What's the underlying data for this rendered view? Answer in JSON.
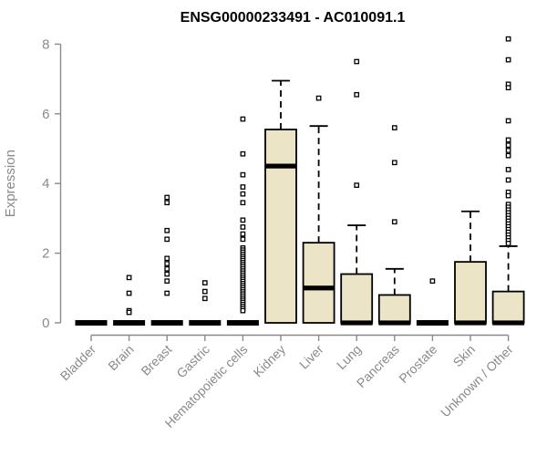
{
  "chart_data": {
    "type": "boxplot",
    "title": "ENSG00000233491 - AC010091.1",
    "ylabel": "Expression",
    "xlabel": "",
    "yticks": [
      0,
      2,
      4,
      6,
      8
    ],
    "ylim": [
      -0.35,
      8.3
    ],
    "grid": false,
    "legend": "none",
    "outlier_marker": "open-square",
    "colors": {
      "box_fill": "#EBE4C7",
      "box_stroke": "#000000",
      "median": "#000000",
      "whisker": "#000000",
      "axis": "#8a8a8a",
      "tick_label": "#8a8a8a",
      "title": "#000000"
    },
    "categories": [
      "Bladder",
      "Brain",
      "Breast",
      "Gastric",
      "Hematopoietic cells",
      "Kidney",
      "Liver",
      "Lung",
      "Pancreas",
      "Prostate",
      "Skin",
      "Unknown / Other"
    ],
    "boxes": [
      {
        "category": "Bladder",
        "lo": 0,
        "q1": 0,
        "median": 0,
        "q3": 0,
        "hi": 0,
        "outliers": []
      },
      {
        "category": "Brain",
        "lo": 0,
        "q1": 0,
        "median": 0,
        "q3": 0,
        "hi": 0,
        "outliers": [
          1.3,
          0.85,
          0.35,
          0.3
        ]
      },
      {
        "category": "Breast",
        "lo": 0,
        "q1": 0,
        "median": 0,
        "q3": 0,
        "hi": 0,
        "outliers": [
          3.6,
          3.45,
          2.65,
          2.4,
          1.85,
          1.7,
          1.55,
          1.4,
          1.2,
          0.85
        ]
      },
      {
        "category": "Gastric",
        "lo": 0,
        "q1": 0,
        "median": 0,
        "q3": 0,
        "hi": 0,
        "outliers": [
          1.15,
          0.9,
          0.7
        ]
      },
      {
        "category": "Hematopoietic cells",
        "lo": 0,
        "q1": 0,
        "median": 0,
        "q3": 0,
        "hi": 0,
        "outliers": [
          5.85,
          4.85,
          4.25,
          3.9,
          3.7,
          3.45,
          2.95,
          2.75,
          2.55,
          2.4,
          2.15,
          2.09,
          2.03,
          1.97,
          1.91,
          1.85,
          1.79,
          1.73,
          1.67,
          1.61,
          1.55,
          1.49,
          1.43,
          1.37,
          1.31,
          1.25,
          1.19,
          1.13,
          1.07,
          1.01,
          0.95,
          0.89,
          0.83,
          0.77,
          0.71,
          0.65,
          0.59,
          0.53,
          0.47,
          0.41,
          0.35
        ]
      },
      {
        "category": "Kidney",
        "lo": 0,
        "q1": 0,
        "median": 4.5,
        "q3": 5.55,
        "hi": 6.95,
        "outliers": []
      },
      {
        "category": "Liver",
        "lo": 0,
        "q1": 0,
        "median": 1.0,
        "q3": 2.3,
        "hi": 5.65,
        "outliers": [
          6.45
        ]
      },
      {
        "category": "Lung",
        "lo": 0,
        "q1": 0,
        "median": 0,
        "q3": 1.4,
        "hi": 2.8,
        "outliers": [
          7.5,
          6.55,
          3.95
        ]
      },
      {
        "category": "Pancreas",
        "lo": 0,
        "q1": 0,
        "median": 0,
        "q3": 0.8,
        "hi": 1.55,
        "outliers": [
          5.6,
          4.6,
          2.9
        ]
      },
      {
        "category": "Prostate",
        "lo": 0,
        "q1": 0,
        "median": 0,
        "q3": 0,
        "hi": 0,
        "outliers": [
          1.2
        ]
      },
      {
        "category": "Skin",
        "lo": 0,
        "q1": 0,
        "median": 0,
        "q3": 1.75,
        "hi": 3.2,
        "outliers": []
      },
      {
        "category": "Unknown / Other",
        "lo": 0,
        "q1": 0,
        "median": 0,
        "q3": 0.9,
        "hi": 2.2,
        "outliers": [
          8.15,
          7.55,
          6.85,
          6.75,
          5.8,
          5.25,
          5.1,
          4.95,
          4.8,
          4.4,
          4.1,
          3.75,
          3.65,
          3.4,
          3.32,
          3.24,
          3.16,
          3.08,
          3.0,
          2.92,
          2.84,
          2.76,
          2.68,
          2.6,
          2.52,
          2.44,
          2.36,
          2.28
        ]
      }
    ]
  }
}
